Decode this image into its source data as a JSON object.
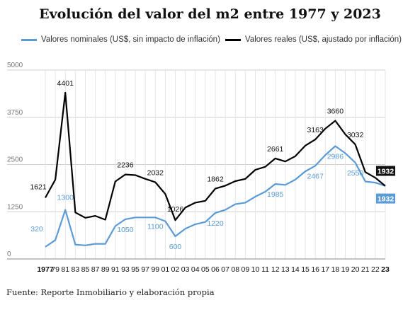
{
  "title": "Evolución del valor del m2 entre 1977 y 2023",
  "source": "Fuente: Reporte Inmobiliario y elaboración propia",
  "colors": {
    "nominal": "#5b9bd5",
    "real": "#000000",
    "grid": "#cfcfcf",
    "axis": "#999999"
  },
  "chart_data": {
    "type": "line",
    "title": "Evolución del valor del m2 entre 1977 y 2023",
    "xlabel": "",
    "ylabel": "",
    "ylim": [
      0,
      5000
    ],
    "yticks": [
      0,
      1250,
      2500,
      3750,
      5000
    ],
    "grid": true,
    "legend": "top",
    "x": [
      1977,
      1979,
      1981,
      1983,
      1985,
      1987,
      1989,
      1991,
      1993,
      1995,
      1997,
      1999,
      2001,
      2002,
      2003,
      2004,
      2005,
      2006,
      2007,
      2008,
      2009,
      2010,
      2011,
      2012,
      2013,
      2014,
      2015,
      2016,
      2017,
      2018,
      2019,
      2020,
      2021,
      2022,
      2023
    ],
    "xtick_labels": [
      "1977",
      "79",
      "81",
      "83",
      "85",
      "87",
      "89",
      "91",
      "93",
      "95",
      "97",
      "99",
      "01",
      "02",
      "03",
      "04",
      "05",
      "06",
      "07",
      "08",
      "09",
      "10",
      "11",
      "12",
      "13",
      "14",
      "15",
      "16",
      "17",
      "18",
      "19",
      "20",
      "21",
      "22",
      "23"
    ],
    "series": [
      {
        "name": "Valores nominales (US$, sin impacto de inflación)",
        "color": "#5b9bd5",
        "values": [
          320,
          500,
          1300,
          380,
          360,
          400,
          400,
          870,
          1050,
          1100,
          1100,
          1100,
          1000,
          600,
          800,
          920,
          980,
          1220,
          1300,
          1450,
          1490,
          1650,
          1780,
          1985,
          1960,
          2100,
          2320,
          2467,
          2750,
          2986,
          2800,
          2550,
          2050,
          2020,
          1932
        ],
        "labels": [
          {
            "x": 1977,
            "text": "320"
          },
          {
            "x": 1981,
            "text": "1300"
          },
          {
            "x": 1993,
            "text": "1050"
          },
          {
            "x": 1999,
            "text": "1100"
          },
          {
            "x": 2002,
            "text": "600"
          },
          {
            "x": 2006,
            "text": "1220"
          },
          {
            "x": 2012,
            "text": "1985"
          },
          {
            "x": 2016,
            "text": "2467"
          },
          {
            "x": 2018,
            "text": "2986"
          },
          {
            "x": 2020,
            "text": "2550"
          }
        ],
        "end_label": "1932"
      },
      {
        "name": "Valores reales (US$, ajustado por inflación)",
        "color": "#000000",
        "values": [
          1621,
          2100,
          4401,
          1230,
          1090,
          1140,
          1040,
          2050,
          2236,
          2220,
          2120,
          2032,
          1720,
          1026,
          1360,
          1490,
          1540,
          1862,
          1940,
          2060,
          2120,
          2360,
          2440,
          2661,
          2580,
          2720,
          3000,
          3163,
          3450,
          3660,
          3300,
          3032,
          2300,
          2150,
          1932
        ],
        "labels": [
          {
            "x": 1977,
            "text": "1621"
          },
          {
            "x": 1981,
            "text": "4401"
          },
          {
            "x": 1993,
            "text": "2236"
          },
          {
            "x": 1999,
            "text": "2032"
          },
          {
            "x": 2002,
            "text": "1026"
          },
          {
            "x": 2006,
            "text": "1862"
          },
          {
            "x": 2012,
            "text": "2661"
          },
          {
            "x": 2016,
            "text": "3163"
          },
          {
            "x": 2018,
            "text": "3660"
          },
          {
            "x": 2020,
            "text": "3032"
          }
        ],
        "end_label": "1932"
      }
    ]
  }
}
